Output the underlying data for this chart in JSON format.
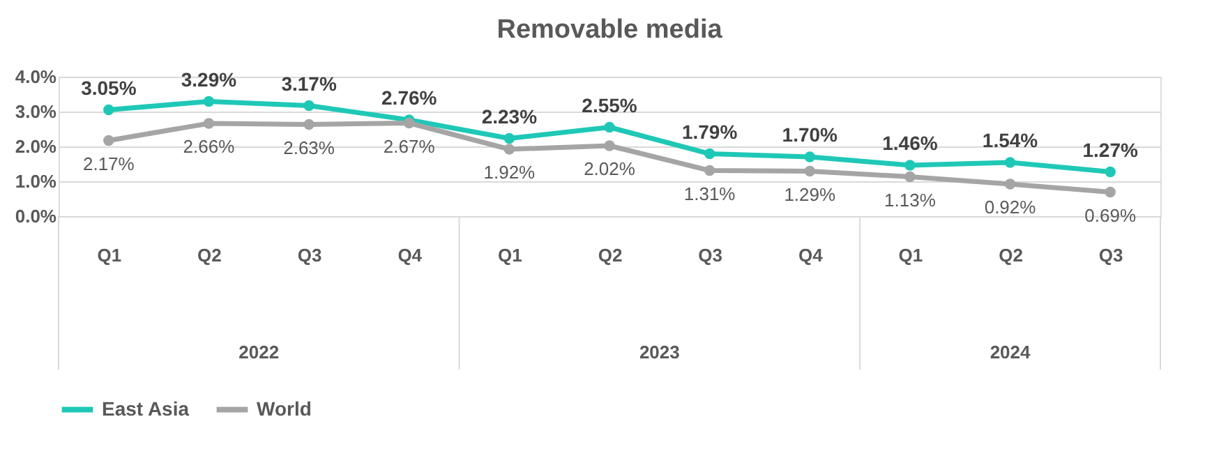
{
  "chart_data": {
    "type": "line",
    "title": "Removable media",
    "categories": [
      "Q1",
      "Q2",
      "Q3",
      "Q4",
      "Q1",
      "Q2",
      "Q3",
      "Q4",
      "Q1",
      "Q2",
      "Q3"
    ],
    "series": [
      {
        "name": "East Asia",
        "color": "#1fc8b6",
        "values": [
          3.05,
          3.29,
          3.17,
          2.76,
          2.23,
          2.55,
          1.79,
          1.7,
          1.46,
          1.54,
          1.27
        ],
        "value_labels": [
          "3.05%",
          "3.29%",
          "3.17%",
          "2.76%",
          "2.23%",
          "2.55%",
          "1.79%",
          "1.70%",
          "1.46%",
          "1.54%",
          "1.27%"
        ]
      },
      {
        "name": "World",
        "color": "#a5a5a5",
        "values": [
          2.17,
          2.66,
          2.63,
          2.67,
          1.92,
          2.02,
          1.31,
          1.29,
          1.13,
          0.92,
          0.69
        ],
        "value_labels": [
          "2.17%",
          "2.66%",
          "2.63%",
          "2.67%",
          "1.92%",
          "2.02%",
          "1.31%",
          "1.29%",
          "1.13%",
          "0.92%",
          "0.69%"
        ]
      }
    ],
    "annotations": [
      "2022",
      "2023",
      "2024"
    ],
    "ylim": [
      0,
      4
    ],
    "yticks": [
      {
        "value": 0,
        "label": "0.0%"
      },
      {
        "value": 1,
        "label": "1.0%"
      },
      {
        "value": 2,
        "label": "2.0%"
      },
      {
        "value": 3,
        "label": "3.0%"
      },
      {
        "value": 4,
        "label": "4.0%"
      }
    ],
    "grid": "y",
    "legend": "bottom",
    "marker": "circle",
    "line_style": "solid"
  }
}
